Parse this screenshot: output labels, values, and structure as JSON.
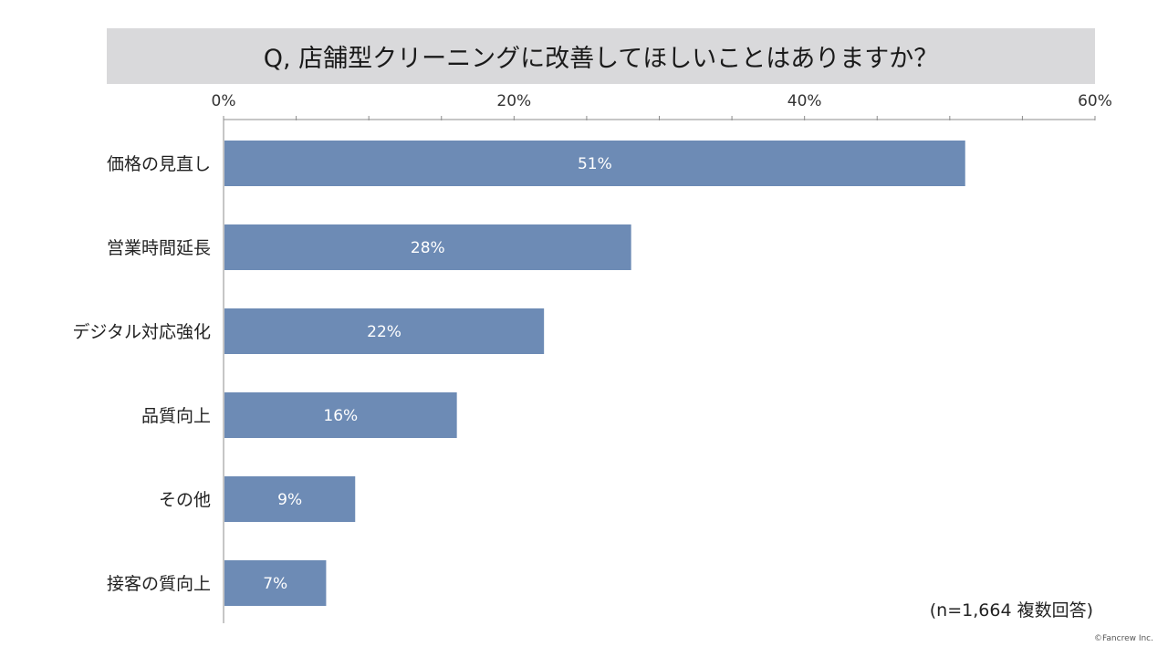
{
  "chart_data": {
    "type": "bar",
    "orientation": "horizontal",
    "title": "Q, 店舗型クリーニングに改善してほしいことはありますか？",
    "categories": [
      "価格の見直し",
      "営業時間延長",
      "デジタル対応強化",
      "品質向上",
      "その他",
      "接客の質向上"
    ],
    "values": [
      51,
      28,
      22,
      16,
      9,
      7
    ],
    "value_labels": [
      "51%",
      "28%",
      "22%",
      "16%",
      "9%",
      "7%"
    ],
    "xlim": [
      0,
      60
    ],
    "x_ticks": [
      0,
      20,
      40,
      60
    ],
    "x_tick_labels": [
      "0%",
      "20%",
      "40%",
      "60%"
    ],
    "x_axis_position": "top",
    "grid": false,
    "bar_color": "#6d8bb5",
    "label_color": "#ffffff"
  },
  "note": "(n=1,664 複数回答)",
  "copyright": "©Fancrew Inc."
}
